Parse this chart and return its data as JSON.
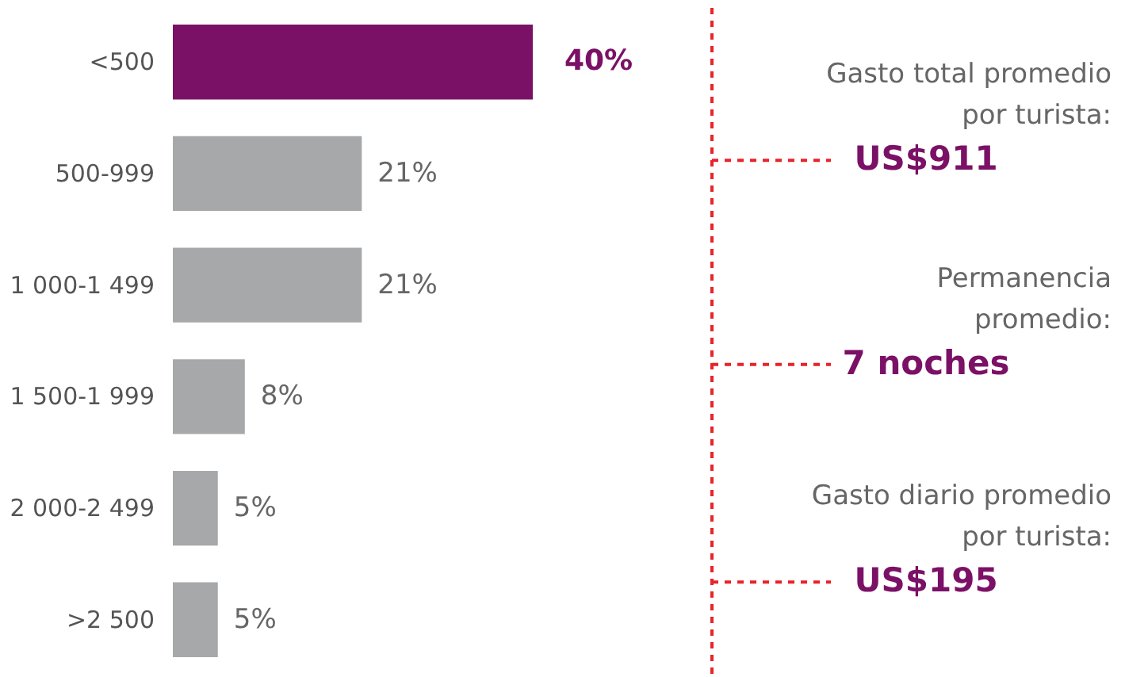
{
  "chart_data": {
    "type": "bar",
    "orientation": "horizontal",
    "categories": [
      "<500",
      "500-999",
      "1 000-1 499",
      "1 500-1 999",
      "2 000-2 499",
      ">2 500"
    ],
    "values": [
      40,
      21,
      21,
      8,
      5,
      5
    ],
    "colors": [
      "#7b1166",
      "#a7a8aa",
      "#a7a8aa",
      "#a7a8aa",
      "#a7a8aa",
      "#a7a8aa"
    ],
    "data_labels": true,
    "value_labels": [
      "40%",
      "21%",
      "21%",
      "8%",
      "5%",
      "5%"
    ],
    "grid": false,
    "annotations": [
      "Gasto total promedio\npor turista:",
      "US$911",
      "Permanencia\npromedio:",
      "7 noches",
      "Gasto diario promedio\npor turista:",
      "US$195"
    ]
  }
}
